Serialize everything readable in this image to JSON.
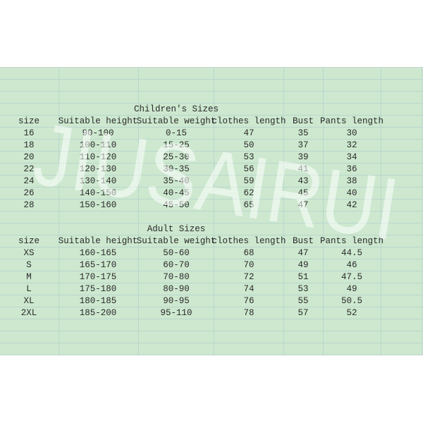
{
  "children": {
    "title": "Children's Sizes",
    "headers": [
      "size",
      "Suitable height",
      "Suitable weight",
      "clothes length",
      "Bust",
      "Pants length"
    ],
    "rows": [
      [
        "16",
        "90-100",
        "0-15",
        "47",
        "35",
        "30"
      ],
      [
        "18",
        "100-110",
        "15-25",
        "50",
        "37",
        "32"
      ],
      [
        "20",
        "110-120",
        "25-30",
        "53",
        "39",
        "34"
      ],
      [
        "22",
        "120-130",
        "30-35",
        "56",
        "41",
        "36"
      ],
      [
        "24",
        "130-140",
        "35-40",
        "59",
        "43",
        "38"
      ],
      [
        "26",
        "140-150",
        "40-45",
        "62",
        "45",
        "40"
      ],
      [
        "28",
        "150-160",
        "45-50",
        "65",
        "47",
        "42"
      ]
    ]
  },
  "adult": {
    "title": "Adult Sizes",
    "headers": [
      "size",
      "Suitable height",
      "Suitable weight",
      "clothes length",
      "Bust",
      "Pants length"
    ],
    "rows": [
      [
        "XS",
        "160-165",
        "50-60",
        "68",
        "47",
        "44.5"
      ],
      [
        "S",
        "165-170",
        "60-70",
        "70",
        "49",
        "46"
      ],
      [
        "M",
        "170-175",
        "70-80",
        "72",
        "51",
        "47.5"
      ],
      [
        "L",
        "175-180",
        "80-90",
        "74",
        "53",
        "49"
      ],
      [
        "XL",
        "180-185",
        "90-95",
        "76",
        "55",
        "50.5"
      ],
      [
        "2XL",
        "185-200",
        "95-110",
        "78",
        "57",
        "52"
      ]
    ]
  },
  "watermark": "JIUSAIRUI",
  "colors": {
    "background": "#cde8cf",
    "gridline": "#b9d6cc",
    "text": "#2a2a2a"
  }
}
